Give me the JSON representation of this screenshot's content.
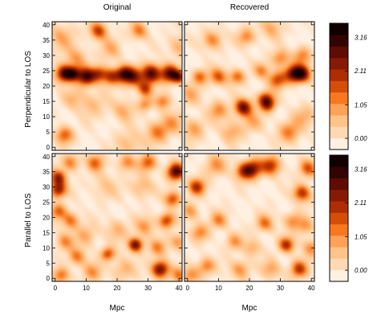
{
  "chart_data": {
    "type": "heatmap",
    "column_titles": [
      "Original",
      "Recovered"
    ],
    "row_titles": [
      "Perpendicular to LOS",
      "Parallel to LOS"
    ],
    "xlabel": "Mpc",
    "x_ticks": [
      0,
      10,
      20,
      30,
      40
    ],
    "y_ticks": [
      0,
      5,
      10,
      15,
      20,
      25,
      30,
      35,
      40
    ],
    "xlim": [
      -1,
      41
    ],
    "ylim": [
      -1,
      41
    ],
    "colorbar": {
      "tick_labels": [
        "3.16",
        "2.11",
        "1.05",
        "0.00"
      ],
      "tick_values": [
        3.16,
        2.11,
        1.05,
        0.0
      ],
      "range": [
        -0.35,
        3.6
      ],
      "colors": [
        "#fff0e2",
        "#ffd9b3",
        "#ffc38a",
        "#ffa257",
        "#f7781f",
        "#d54e08",
        "#ad2d04",
        "#861a04",
        "#5e0c04",
        "#330404",
        "#120000"
      ]
    },
    "panels": [
      {
        "name": "original-perpendicular",
        "blobs": [
          {
            "x": 3,
            "y": 24,
            "v": 3.3,
            "s": 2.0
          },
          {
            "x": 10,
            "y": 23,
            "v": 3.1,
            "s": 2.0
          },
          {
            "x": 31,
            "y": 24,
            "v": 3.3,
            "s": 2.2
          },
          {
            "x": 37,
            "y": 24,
            "v": 3.0,
            "s": 2.0
          },
          {
            "x": 25,
            "y": 23,
            "v": 2.6,
            "s": 2.2
          },
          {
            "x": 18,
            "y": 23,
            "v": 2.2,
            "s": 2.0
          },
          {
            "x": 22,
            "y": 24,
            "v": 2.4,
            "s": 1.8
          },
          {
            "x": 14,
            "y": 24,
            "v": 2.0,
            "s": 1.8
          },
          {
            "x": 6,
            "y": 24,
            "v": 2.4,
            "s": 1.6
          },
          {
            "x": 40,
            "y": 23,
            "v": 2.2,
            "s": 1.5
          },
          {
            "x": 14,
            "y": 38,
            "v": 2.1,
            "s": 2.0
          },
          {
            "x": 27,
            "y": 38,
            "v": 1.5,
            "s": 2.0
          },
          {
            "x": 3,
            "y": 4,
            "v": 1.8,
            "s": 2.0
          },
          {
            "x": 29,
            "y": 19,
            "v": 1.9,
            "s": 1.7
          },
          {
            "x": 29,
            "y": 14,
            "v": 1.3,
            "s": 1.6
          },
          {
            "x": 35,
            "y": 15,
            "v": 1.5,
            "s": 1.8
          },
          {
            "x": 33,
            "y": 5,
            "v": 1.5,
            "s": 2.5
          },
          {
            "x": 22,
            "y": 12,
            "v": 1.0,
            "s": 2.5
          },
          {
            "x": 40,
            "y": 33,
            "v": 1.0,
            "s": 2.5
          },
          {
            "x": 7,
            "y": 29,
            "v": 1.1,
            "s": 2.5
          },
          {
            "x": 2,
            "y": 36,
            "v": 1.0,
            "s": 3.0
          },
          {
            "x": 18,
            "y": 32,
            "v": 0.9,
            "s": 2.5
          },
          {
            "x": 12,
            "y": 14,
            "v": 0.8,
            "s": 3.0
          },
          {
            "x": 38,
            "y": 8,
            "v": 1.0,
            "s": 2.5
          },
          {
            "x": 24,
            "y": 1,
            "v": 0.9,
            "s": 3.0
          },
          {
            "x": 6,
            "y": 16,
            "v": 0.8,
            "s": 2.5
          }
        ]
      },
      {
        "name": "recovered-perpendicular",
        "blobs": [
          {
            "x": 18,
            "y": 13,
            "v": 3.0,
            "s": 2.0
          },
          {
            "x": 37,
            "y": 24,
            "v": 3.0,
            "s": 2.0
          },
          {
            "x": 34,
            "y": 24,
            "v": 2.5,
            "s": 2.0
          },
          {
            "x": 29,
            "y": 22,
            "v": 2.0,
            "s": 2.0
          },
          {
            "x": 10,
            "y": 23,
            "v": 1.8,
            "s": 2.0
          },
          {
            "x": 4,
            "y": 23,
            "v": 1.6,
            "s": 1.8
          },
          {
            "x": 16,
            "y": 23,
            "v": 1.6,
            "s": 1.8
          },
          {
            "x": 24,
            "y": 25,
            "v": 1.3,
            "s": 1.8
          },
          {
            "x": 26,
            "y": 14,
            "v": 2.3,
            "s": 1.8
          },
          {
            "x": 25,
            "y": 16,
            "v": 1.8,
            "s": 1.8
          },
          {
            "x": 8,
            "y": 35,
            "v": 1.5,
            "s": 2.2
          },
          {
            "x": 19,
            "y": 36,
            "v": 1.4,
            "s": 2.0
          },
          {
            "x": 30,
            "y": 29,
            "v": 1.5,
            "s": 2.0
          },
          {
            "x": 37,
            "y": 30,
            "v": 1.4,
            "s": 2.0
          },
          {
            "x": 2,
            "y": 6,
            "v": 1.1,
            "s": 2.5
          },
          {
            "x": 33,
            "y": 5,
            "v": 1.5,
            "s": 2.5
          },
          {
            "x": 10,
            "y": 12,
            "v": 1.3,
            "s": 2.2
          },
          {
            "x": 14,
            "y": 5,
            "v": 1.0,
            "s": 2.5
          },
          {
            "x": 38,
            "y": 10,
            "v": 0.9,
            "s": 2.5
          },
          {
            "x": 1,
            "y": 17,
            "v": 0.9,
            "s": 2.5
          },
          {
            "x": 27,
            "y": 39,
            "v": 1.0,
            "s": 2.5
          },
          {
            "x": 21,
            "y": 8,
            "v": 0.9,
            "s": 2.5
          }
        ]
      },
      {
        "name": "original-parallel",
        "blobs": [
          {
            "x": 39,
            "y": 35,
            "v": 3.3,
            "s": 2.0
          },
          {
            "x": 34,
            "y": 3,
            "v": 3.1,
            "s": 2.0
          },
          {
            "x": 26,
            "y": 11,
            "v": 3.0,
            "s": 1.7
          },
          {
            "x": 1,
            "y": 29,
            "v": 2.6,
            "s": 1.8
          },
          {
            "x": 1,
            "y": 33,
            "v": 2.4,
            "s": 1.8
          },
          {
            "x": 17,
            "y": 8,
            "v": 2.0,
            "s": 1.6
          },
          {
            "x": 36,
            "y": 19,
            "v": 2.2,
            "s": 1.8
          },
          {
            "x": 38,
            "y": 26,
            "v": 2.0,
            "s": 1.8
          },
          {
            "x": 30,
            "y": 38,
            "v": 1.8,
            "s": 2.0
          },
          {
            "x": 13,
            "y": 38,
            "v": 1.6,
            "s": 2.0
          },
          {
            "x": 23,
            "y": 38,
            "v": 1.4,
            "s": 2.0
          },
          {
            "x": 5,
            "y": 38,
            "v": 1.5,
            "s": 2.0
          },
          {
            "x": 5,
            "y": 19,
            "v": 1.6,
            "s": 2.0
          },
          {
            "x": 1,
            "y": 22,
            "v": 1.6,
            "s": 1.8
          },
          {
            "x": 7,
            "y": 7,
            "v": 1.5,
            "s": 2.0
          },
          {
            "x": 3,
            "y": 12,
            "v": 1.3,
            "s": 2.0
          },
          {
            "x": 12,
            "y": 2,
            "v": 1.2,
            "s": 2.2
          },
          {
            "x": 22,
            "y": 3,
            "v": 1.0,
            "s": 2.5
          },
          {
            "x": 29,
            "y": 17,
            "v": 1.2,
            "s": 2.2
          },
          {
            "x": 33,
            "y": 10,
            "v": 1.3,
            "s": 2.0
          },
          {
            "x": 40,
            "y": 12,
            "v": 1.3,
            "s": 2.0
          },
          {
            "x": 10,
            "y": 14,
            "v": 1.0,
            "s": 2.5
          },
          {
            "x": 20,
            "y": 16,
            "v": 0.9,
            "s": 2.5
          },
          {
            "x": 28,
            "y": 30,
            "v": 1.0,
            "s": 2.5
          },
          {
            "x": 16,
            "y": 30,
            "v": 0.7,
            "s": 3.0
          },
          {
            "x": 2,
            "y": 1,
            "v": 1.6,
            "s": 1.8
          },
          {
            "x": 40,
            "y": 1,
            "v": 1.4,
            "s": 1.8
          }
        ]
      },
      {
        "name": "recovered-parallel",
        "blobs": [
          {
            "x": 21,
            "y": 36,
            "v": 2.6,
            "s": 2.2
          },
          {
            "x": 27,
            "y": 37,
            "v": 2.2,
            "s": 2.2
          },
          {
            "x": 18,
            "y": 35,
            "v": 1.8,
            "s": 2.0
          },
          {
            "x": 3,
            "y": 30,
            "v": 2.2,
            "s": 2.0
          },
          {
            "x": 37,
            "y": 28,
            "v": 2.3,
            "s": 2.0
          },
          {
            "x": 39,
            "y": 36,
            "v": 1.8,
            "s": 2.0
          },
          {
            "x": 36,
            "y": 3,
            "v": 2.2,
            "s": 2.0
          },
          {
            "x": 32,
            "y": 11,
            "v": 2.3,
            "s": 1.8
          },
          {
            "x": 25,
            "y": 18,
            "v": 1.6,
            "s": 2.0
          },
          {
            "x": 10,
            "y": 19,
            "v": 1.4,
            "s": 2.0
          },
          {
            "x": 4,
            "y": 15,
            "v": 1.3,
            "s": 2.0
          },
          {
            "x": 6,
            "y": 4,
            "v": 1.5,
            "s": 2.0
          },
          {
            "x": 17,
            "y": 3,
            "v": 1.3,
            "s": 2.2
          },
          {
            "x": 27,
            "y": 3,
            "v": 1.1,
            "s": 2.2
          },
          {
            "x": 34,
            "y": 19,
            "v": 1.3,
            "s": 2.0
          },
          {
            "x": 15,
            "y": 12,
            "v": 1.2,
            "s": 2.0
          },
          {
            "x": 21,
            "y": 10,
            "v": 1.0,
            "s": 2.0
          },
          {
            "x": 40,
            "y": 10,
            "v": 1.3,
            "s": 2.0
          },
          {
            "x": 9,
            "y": 37,
            "v": 1.2,
            "s": 2.5
          },
          {
            "x": 1,
            "y": 22,
            "v": 1.2,
            "s": 2.0
          },
          {
            "x": 38,
            "y": 17,
            "v": 1.2,
            "s": 2.0
          },
          {
            "x": 1,
            "y": 1,
            "v": 1.3,
            "s": 2.0
          }
        ]
      }
    ]
  }
}
